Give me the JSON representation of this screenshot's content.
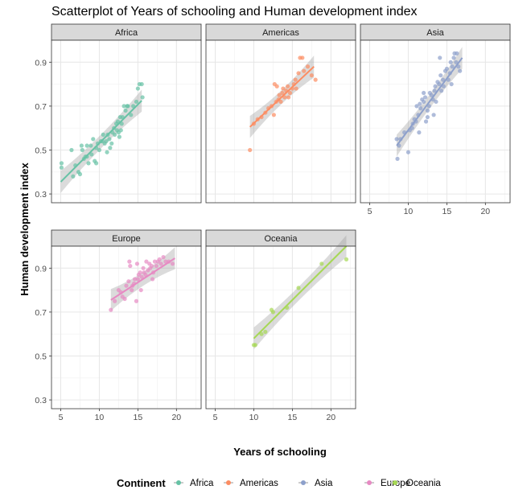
{
  "chart_data": {
    "type": "scatter",
    "title": "Scatterplot of Years of schooling and Human development index",
    "xlabel": "Years of schooling",
    "ylabel": "Human development index",
    "xlim": [
      3.8,
      23.2
    ],
    "ylim": [
      0.26,
      1.0
    ],
    "x_ticks": [
      5,
      10,
      15,
      20
    ],
    "y_ticks": [
      0.3,
      0.5,
      0.7,
      0.9
    ],
    "grid": true,
    "legend_title": "Continent",
    "legend_position": "bottom",
    "smoothing": "linear fit with confidence band",
    "series": [
      {
        "name": "Africa",
        "color": "#66c2a5",
        "fit": {
          "x": [
            5.0,
            15.5
          ],
          "y": [
            0.355,
            0.725
          ]
        },
        "points": [
          [
            5.1,
            0.44
          ],
          [
            5.1,
            0.42
          ],
          [
            6.4,
            0.5
          ],
          [
            6.6,
            0.38
          ],
          [
            6.9,
            0.43
          ],
          [
            7.3,
            0.4
          ],
          [
            7.5,
            0.39
          ],
          [
            7.7,
            0.52
          ],
          [
            7.8,
            0.5
          ],
          [
            8.0,
            0.46
          ],
          [
            8.2,
            0.47
          ],
          [
            8.4,
            0.52
          ],
          [
            8.4,
            0.47
          ],
          [
            8.6,
            0.44
          ],
          [
            8.9,
            0.52
          ],
          [
            9.0,
            0.48
          ],
          [
            9.2,
            0.55
          ],
          [
            9.4,
            0.45
          ],
          [
            9.6,
            0.44
          ],
          [
            9.6,
            0.51
          ],
          [
            9.8,
            0.53
          ],
          [
            10.0,
            0.5
          ],
          [
            10.2,
            0.54
          ],
          [
            10.4,
            0.54
          ],
          [
            10.5,
            0.57
          ],
          [
            10.7,
            0.53
          ],
          [
            10.9,
            0.54
          ],
          [
            11.0,
            0.49
          ],
          [
            11.1,
            0.57
          ],
          [
            11.3,
            0.55
          ],
          [
            11.4,
            0.51
          ],
          [
            11.6,
            0.53
          ],
          [
            11.7,
            0.58
          ],
          [
            11.9,
            0.6
          ],
          [
            12.0,
            0.57
          ],
          [
            12.2,
            0.62
          ],
          [
            12.3,
            0.59
          ],
          [
            12.4,
            0.63
          ],
          [
            12.5,
            0.58
          ],
          [
            12.6,
            0.56
          ],
          [
            12.7,
            0.65
          ],
          [
            12.8,
            0.59
          ],
          [
            12.9,
            0.62
          ],
          [
            13.0,
            0.65
          ],
          [
            13.2,
            0.7
          ],
          [
            13.4,
            0.68
          ],
          [
            13.6,
            0.7
          ],
          [
            13.7,
            0.7
          ],
          [
            14.1,
            0.66
          ],
          [
            14.4,
            0.7
          ],
          [
            15.0,
            0.78
          ],
          [
            15.2,
            0.8
          ],
          [
            15.5,
            0.8
          ],
          [
            15.6,
            0.74
          ],
          [
            14.8,
            0.72
          ]
        ]
      },
      {
        "name": "Americas",
        "color": "#fc8d62",
        "fit": {
          "x": [
            9.5,
            17.8
          ],
          "y": [
            0.605,
            0.88
          ]
        },
        "points": [
          [
            9.5,
            0.5
          ],
          [
            10.0,
            0.62
          ],
          [
            10.5,
            0.64
          ],
          [
            11.0,
            0.65
          ],
          [
            11.5,
            0.67
          ],
          [
            11.9,
            0.69
          ],
          [
            12.3,
            0.7
          ],
          [
            12.6,
            0.66
          ],
          [
            12.7,
            0.8
          ],
          [
            12.9,
            0.72
          ],
          [
            13.0,
            0.79
          ],
          [
            13.2,
            0.73
          ],
          [
            13.3,
            0.75
          ],
          [
            13.5,
            0.72
          ],
          [
            13.7,
            0.76
          ],
          [
            13.8,
            0.78
          ],
          [
            14.0,
            0.74
          ],
          [
            14.2,
            0.77
          ],
          [
            14.4,
            0.79
          ],
          [
            14.5,
            0.74
          ],
          [
            14.7,
            0.76
          ],
          [
            15.0,
            0.78
          ],
          [
            15.2,
            0.8
          ],
          [
            15.4,
            0.82
          ],
          [
            15.5,
            0.78
          ],
          [
            15.8,
            0.85
          ],
          [
            16.0,
            0.92
          ],
          [
            16.3,
            0.92
          ],
          [
            16.5,
            0.86
          ],
          [
            17.0,
            0.88
          ],
          [
            17.5,
            0.84
          ],
          [
            18.0,
            0.82
          ]
        ]
      },
      {
        "name": "Asia",
        "color": "#8da0cb",
        "fit": {
          "x": [
            8.5,
            17.0
          ],
          "y": [
            0.52,
            0.92
          ]
        },
        "points": [
          [
            8.5,
            0.55
          ],
          [
            8.6,
            0.46
          ],
          [
            8.8,
            0.52
          ],
          [
            9.0,
            0.55
          ],
          [
            9.5,
            0.58
          ],
          [
            10.0,
            0.49
          ],
          [
            10.2,
            0.59
          ],
          [
            10.5,
            0.6
          ],
          [
            10.8,
            0.64
          ],
          [
            11.0,
            0.63
          ],
          [
            11.1,
            0.7
          ],
          [
            11.3,
            0.66
          ],
          [
            11.4,
            0.58
          ],
          [
            11.5,
            0.71
          ],
          [
            11.6,
            0.69
          ],
          [
            11.8,
            0.73
          ],
          [
            12.0,
            0.72
          ],
          [
            12.2,
            0.74
          ],
          [
            12.3,
            0.63
          ],
          [
            12.5,
            0.65
          ],
          [
            12.5,
            0.68
          ],
          [
            12.7,
            0.7
          ],
          [
            12.8,
            0.76
          ],
          [
            13.0,
            0.75
          ],
          [
            13.2,
            0.73
          ],
          [
            13.4,
            0.77
          ],
          [
            13.5,
            0.79
          ],
          [
            13.6,
            0.72
          ],
          [
            13.8,
            0.81
          ],
          [
            14.0,
            0.8
          ],
          [
            14.2,
            0.84
          ],
          [
            14.3,
            0.77
          ],
          [
            14.5,
            0.82
          ],
          [
            14.6,
            0.79
          ],
          [
            14.8,
            0.86
          ],
          [
            15.0,
            0.87
          ],
          [
            15.2,
            0.82
          ],
          [
            15.4,
            0.85
          ],
          [
            15.5,
            0.9
          ],
          [
            15.7,
            0.88
          ],
          [
            15.9,
            0.92
          ],
          [
            16.0,
            0.94
          ],
          [
            16.2,
            0.9
          ],
          [
            16.3,
            0.94
          ],
          [
            16.5,
            0.88
          ],
          [
            16.7,
            0.86
          ],
          [
            12.0,
            0.76
          ],
          [
            10.6,
            0.62
          ],
          [
            14.1,
            0.92
          ],
          [
            13.3,
            0.66
          ],
          [
            15.6,
            0.8
          ]
        ]
      },
      {
        "name": "Europe",
        "color": "#e78ac3",
        "fit": {
          "x": [
            11.5,
            19.8
          ],
          "y": [
            0.755,
            0.945
          ]
        },
        "points": [
          [
            11.5,
            0.71
          ],
          [
            12.0,
            0.75
          ],
          [
            12.5,
            0.8
          ],
          [
            12.8,
            0.79
          ],
          [
            13.0,
            0.77
          ],
          [
            13.3,
            0.76
          ],
          [
            13.5,
            0.82
          ],
          [
            13.8,
            0.84
          ],
          [
            14.0,
            0.91
          ],
          [
            14.2,
            0.8
          ],
          [
            14.3,
            0.82
          ],
          [
            14.5,
            0.83
          ],
          [
            14.6,
            0.85
          ],
          [
            14.8,
            0.75
          ],
          [
            15.0,
            0.85
          ],
          [
            15.1,
            0.87
          ],
          [
            15.3,
            0.88
          ],
          [
            15.4,
            0.8
          ],
          [
            15.5,
            0.86
          ],
          [
            15.7,
            0.9
          ],
          [
            15.8,
            0.88
          ],
          [
            16.0,
            0.87
          ],
          [
            16.1,
            0.93
          ],
          [
            16.3,
            0.89
          ],
          [
            16.5,
            0.92
          ],
          [
            16.6,
            0.9
          ],
          [
            16.8,
            0.91
          ],
          [
            17.0,
            0.88
          ],
          [
            17.2,
            0.93
          ],
          [
            17.4,
            0.91
          ],
          [
            17.6,
            0.93
          ],
          [
            17.8,
            0.94
          ],
          [
            18.0,
            0.92
          ],
          [
            18.3,
            0.95
          ],
          [
            18.6,
            0.93
          ],
          [
            19.0,
            0.93
          ],
          [
            19.5,
            0.92
          ],
          [
            14.9,
            0.92
          ],
          [
            13.9,
            0.93
          ],
          [
            16.9,
            0.85
          ]
        ]
      },
      {
        "name": "Oceania",
        "color": "#a6d854",
        "fit": {
          "x": [
            10.0,
            22.0
          ],
          "y": [
            0.58,
            1.0
          ]
        },
        "points": [
          [
            10.0,
            0.55
          ],
          [
            10.2,
            0.55
          ],
          [
            11.0,
            0.6
          ],
          [
            11.5,
            0.61
          ],
          [
            12.3,
            0.71
          ],
          [
            12.5,
            0.7
          ],
          [
            14.3,
            0.72
          ],
          [
            15.8,
            0.81
          ],
          [
            18.8,
            0.92
          ],
          [
            22.0,
            0.94
          ]
        ]
      }
    ]
  }
}
